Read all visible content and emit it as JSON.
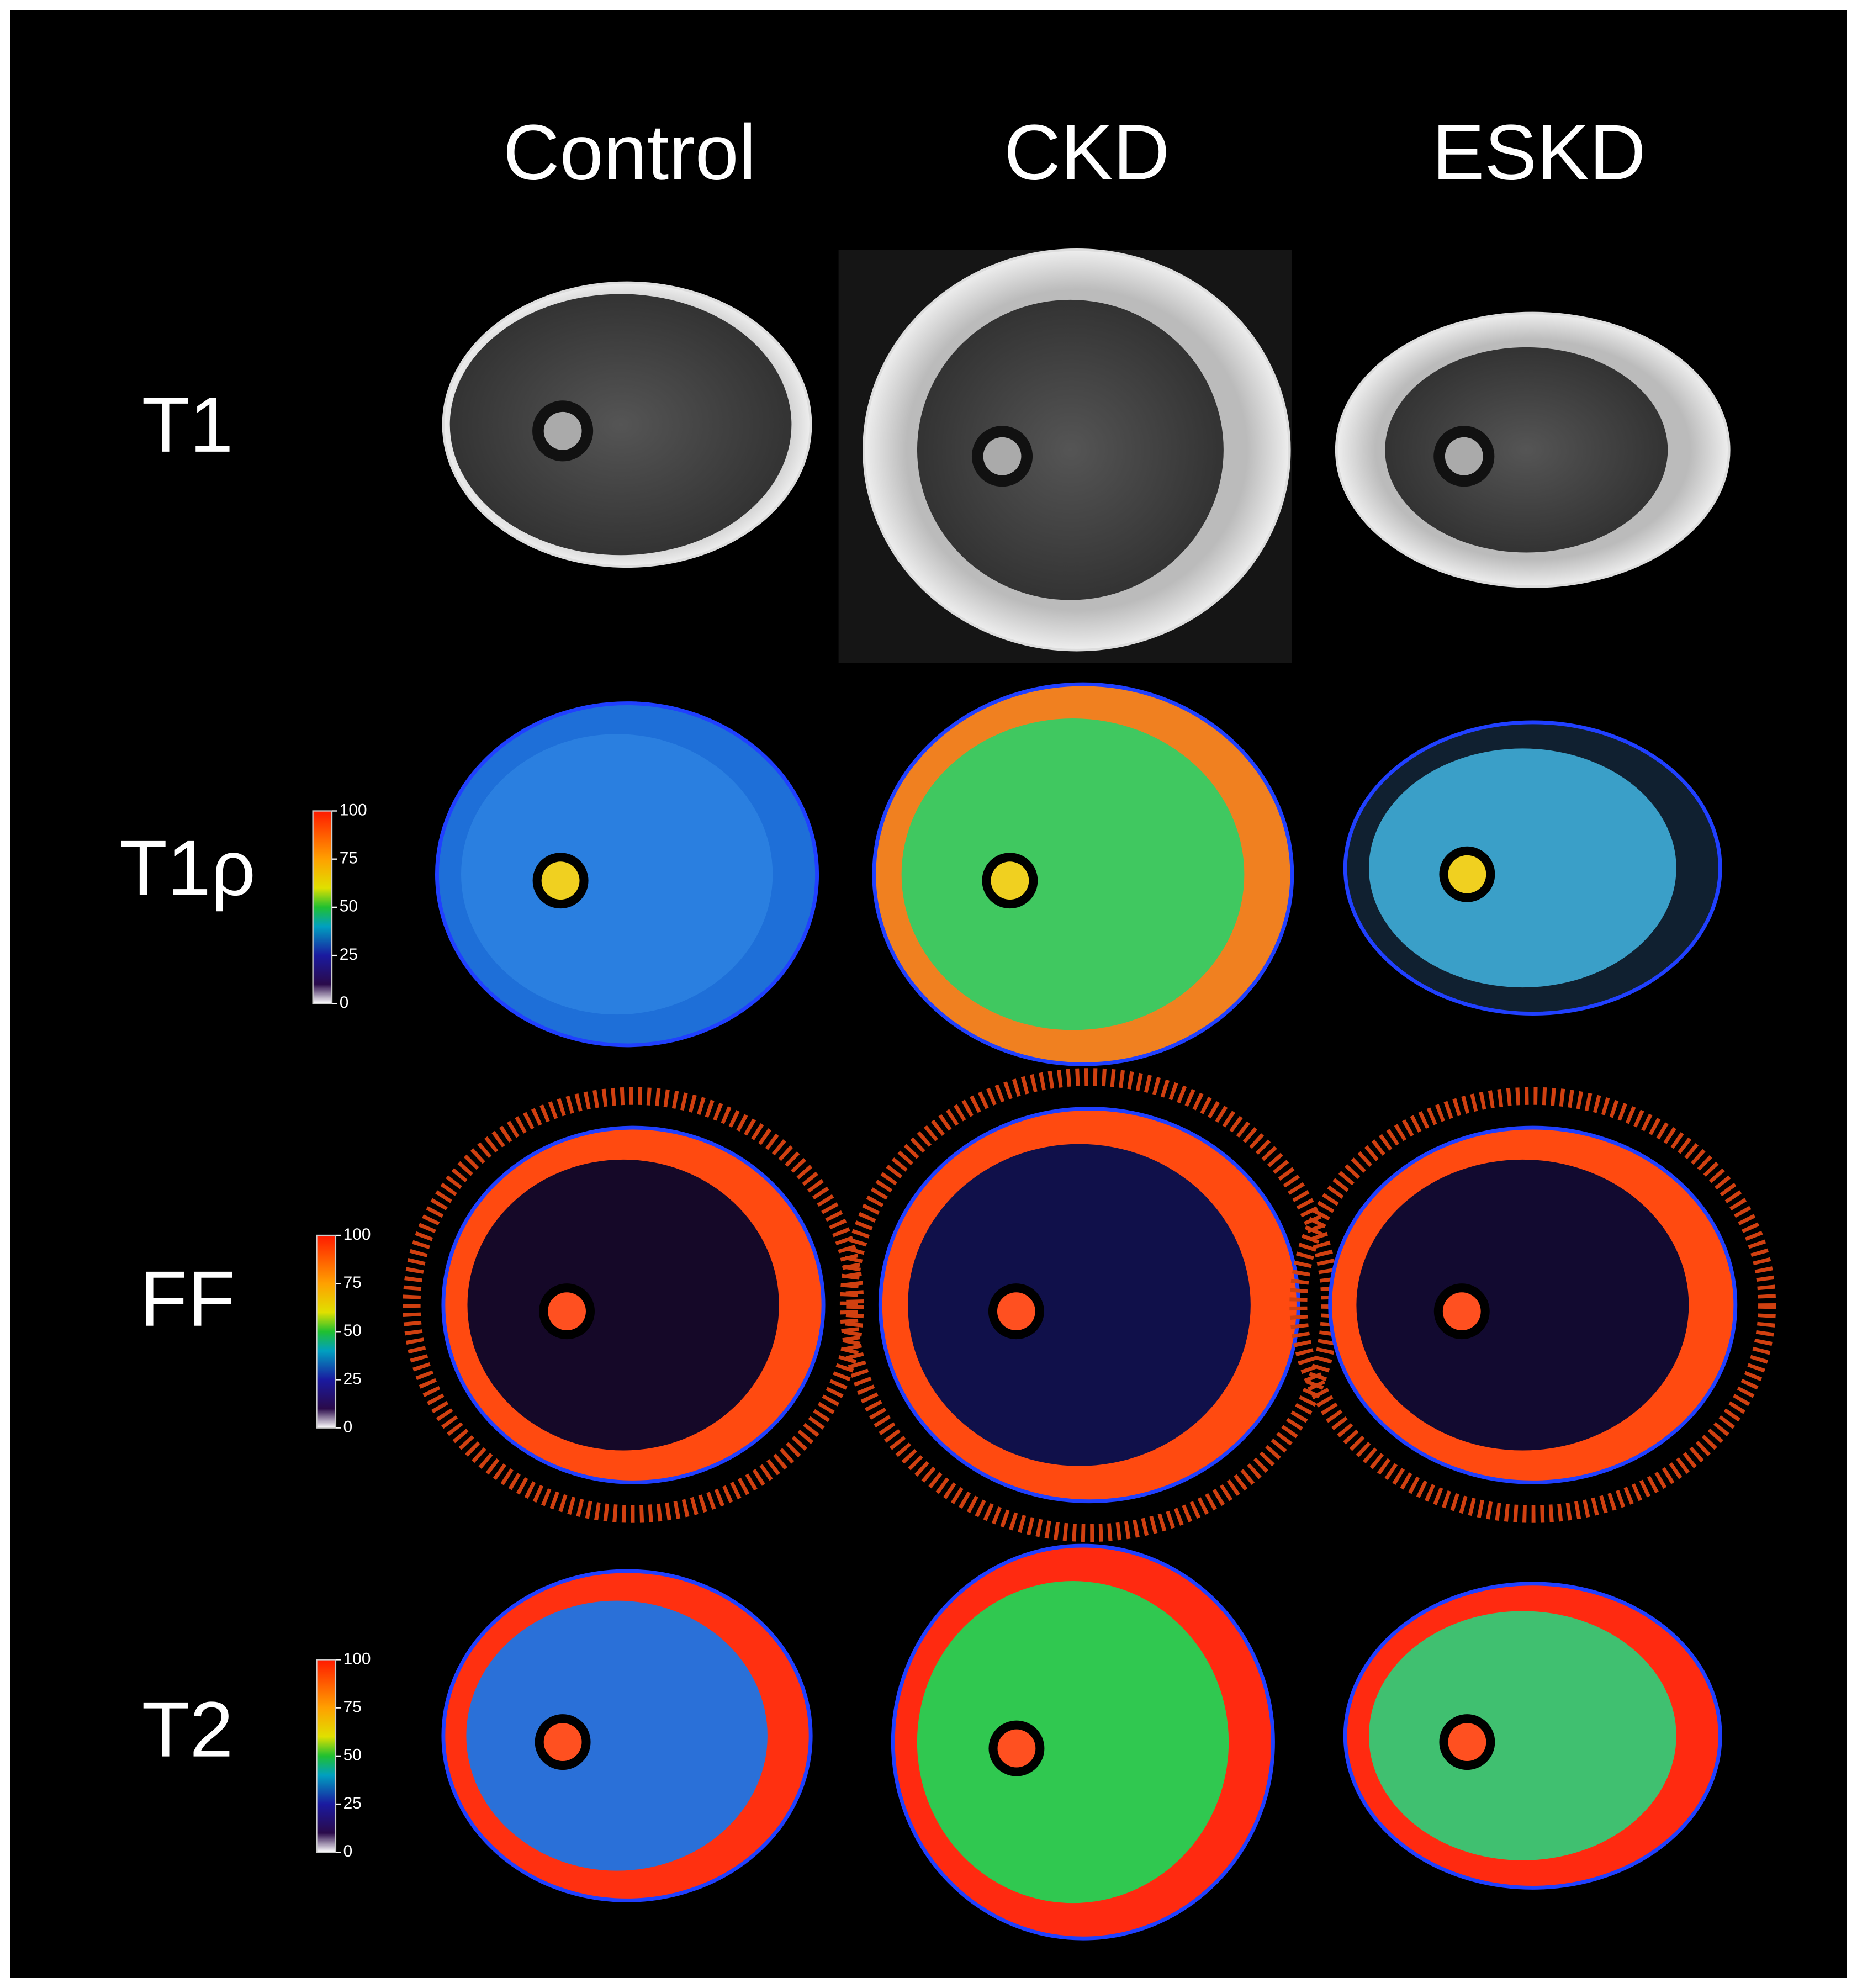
{
  "columns": [
    "Control",
    "CKD",
    "ESKD"
  ],
  "rows": [
    "T1",
    "T1ρ",
    "FF",
    "T2"
  ],
  "colorbar_ticks": [
    "100",
    "75",
    "50",
    "25",
    "0"
  ]
}
